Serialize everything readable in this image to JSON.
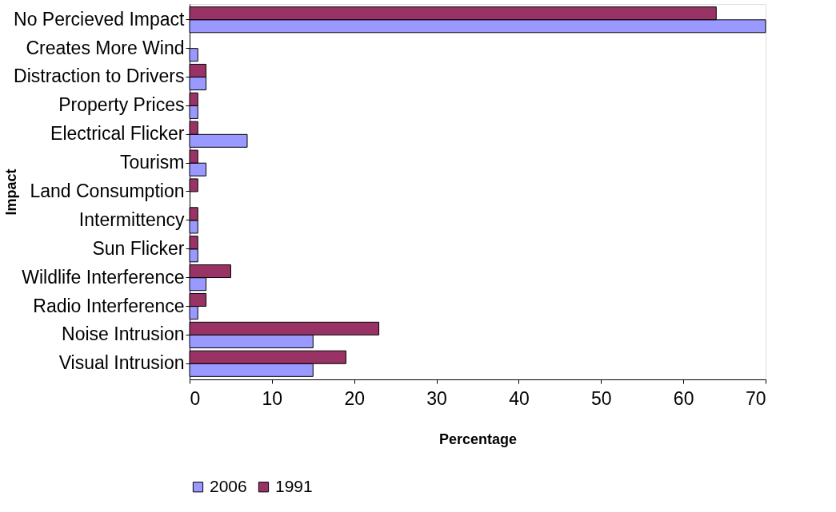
{
  "chart_data": {
    "type": "bar",
    "orientation": "horizontal",
    "xlabel": "Percentage",
    "ylabel": "Impact",
    "categories": [
      "No Percieved Impact",
      "Creates More Wind",
      "Distraction to Drivers",
      "Property Prices",
      "Electrical Flicker",
      "Tourism",
      "Land Consumption",
      "Intermittency",
      "Sun Flicker",
      "Wildlife Interference",
      "Radio Interference",
      "Noise Intrusion",
      "Visual Intrusion"
    ],
    "series": [
      {
        "name": "2006",
        "color": "#9999ff",
        "values": [
          70,
          1,
          2,
          1,
          7,
          2,
          null,
          1,
          1,
          2,
          1,
          15,
          15
        ]
      },
      {
        "name": "1991",
        "color": "#993366",
        "values": [
          64,
          null,
          2,
          1,
          1,
          1,
          1,
          1,
          1,
          5,
          2,
          23,
          19
        ]
      }
    ],
    "xlim": [
      0,
      70
    ],
    "xticks": [
      0,
      10,
      20,
      30,
      40,
      50,
      60,
      70
    ],
    "grid": false,
    "legend": "bottom"
  }
}
